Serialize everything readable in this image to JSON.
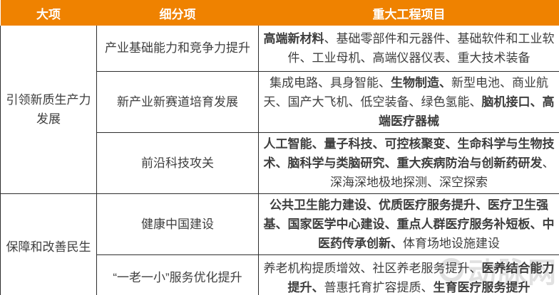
{
  "colors": {
    "header_bg": "#EF8200",
    "header_text": "#FFFFFF",
    "body_text": "#3E3E3E",
    "border": "#2E2E2E",
    "watermark": "#C4C4C4"
  },
  "watermark": {
    "text": "动脉网"
  },
  "table": {
    "headers": [
      {
        "label": "大项"
      },
      {
        "label": "细分项"
      },
      {
        "label": "重大工程项目"
      }
    ],
    "groups": [
      {
        "category": "引领新质生产力发展",
        "rows": [
          {
            "sub": "产业基础能力和竞争力提升",
            "projects": [
              {
                "text": "高端新材料",
                "bold": true
              },
              {
                "text": "、基础零部件和元器件、基础软件和工业软件、工业母机、高端仪器仪表、重大技术装备",
                "bold": false
              }
            ]
          },
          {
            "sub": "新产业新赛道培育发展",
            "projects": [
              {
                "text": "集成电路、具身智能、",
                "bold": false
              },
              {
                "text": "生物制造、",
                "bold": true
              },
              {
                "text": "新型电池、商业航天、国产大飞机、低空装备、绿色氢能、",
                "bold": false
              },
              {
                "text": "脑机接口、高端医疗器械",
                "bold": true
              }
            ]
          },
          {
            "sub": "前沿科技攻关",
            "projects": [
              {
                "text": "人工智能、量子科技、可控核聚变、生命科学与生物技术、脑科学与类脑研究、重大疾病防治与创新药研发",
                "bold": true
              },
              {
                "text": "、深海深地极地探测、深空探索",
                "bold": false
              }
            ]
          }
        ]
      },
      {
        "category": "保障和改善民生",
        "rows": [
          {
            "sub": "健康中国建设",
            "projects": [
              {
                "text": "公共卫生能力建设、优质医疗服务提升、医疗卫生强基、国家医学中心建设、重点人群医疗服务补短板、中医药传承创新、",
                "bold": true
              },
              {
                "text": "体育场地设施建设",
                "bold": false
              }
            ]
          },
          {
            "sub": "“一老一小”服务优化提升",
            "projects": [
              {
                "text": "养老机构提质增效、社区养老服务提升、",
                "bold": false
              },
              {
                "text": "医养结合能力提升、",
                "bold": true
              },
              {
                "text": "普惠托育扩容提质、",
                "bold": false
              },
              {
                "text": "生育医疗服务提升",
                "bold": true
              }
            ]
          }
        ]
      }
    ]
  }
}
